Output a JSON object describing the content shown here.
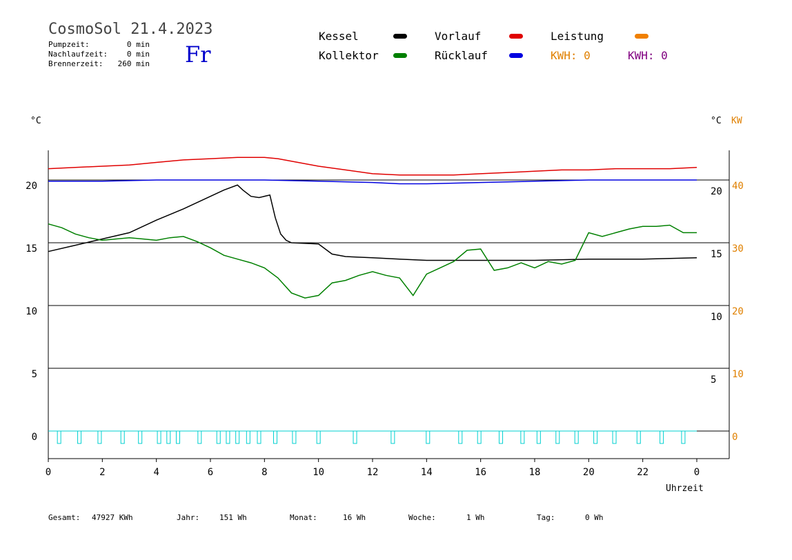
{
  "header": {
    "title": "CosmoSol 21.4.2023",
    "weekday": "Fr",
    "info": [
      {
        "label": "Pumpzeit:",
        "value": "0 min"
      },
      {
        "label": "Nachlaufzeit:",
        "value": "0 min"
      },
      {
        "label": "Brennerzeit:",
        "value": "260 min"
      }
    ]
  },
  "legend": {
    "kessel": {
      "label": "Kessel",
      "color": "#000000"
    },
    "vorlauf": {
      "label": "Vorlauf",
      "color": "#e00000"
    },
    "leistung": {
      "label": "Leistung",
      "color": "#f08000"
    },
    "kollektor": {
      "label": "Kollektor",
      "color": "#008000"
    },
    "ruecklauf": {
      "label": "Rücklauf",
      "color": "#0000e0"
    },
    "kwh1": {
      "label": "KWH: 0",
      "color": "#e08000"
    },
    "kwh2": {
      "label": "KWH: 0",
      "color": "#800080"
    }
  },
  "axes": {
    "left_unit": "°C",
    "right_unit_c": "°C",
    "right_unit_kw": "KW",
    "xlabel": "Uhrzeit"
  },
  "footer": [
    {
      "label": "Gesamt:",
      "value": "47927 KWh"
    },
    {
      "label": "Jahr:",
      "value": "151 Wh"
    },
    {
      "label": "Monat:",
      "value": "16 Wh"
    },
    {
      "label": "Woche:",
      "value": "1 Wh"
    },
    {
      "label": "Tag:",
      "value": "0 Wh"
    }
  ],
  "chart_data": {
    "type": "line",
    "title": "CosmoSol 21.4.2023",
    "xlabel": "Uhrzeit",
    "ylabel": "°C",
    "x_ticks": [
      "0",
      "2",
      "4",
      "6",
      "8",
      "10",
      "12",
      "14",
      "16",
      "18",
      "20",
      "22",
      "0"
    ],
    "xlim": [
      0,
      24
    ],
    "ylim": [
      -2,
      23
    ],
    "y_ticks_left": [
      "0",
      "5",
      "10",
      "15",
      "20"
    ],
    "y_ticks_right_c": [
      "5",
      "10",
      "15",
      "20"
    ],
    "y_ticks_right_kw": [
      "0",
      "10",
      "20",
      "30",
      "40"
    ],
    "gridlines_y": [
      0,
      5,
      10,
      15,
      20
    ],
    "series": [
      {
        "name": "Vorlauf",
        "color": "#e00000",
        "x": [
          0,
          1,
          2,
          3,
          4,
          5,
          6,
          7,
          8,
          8.5,
          9,
          10,
          11,
          12,
          13,
          14,
          15,
          16,
          17,
          18,
          19,
          20,
          21,
          22,
          23,
          24
        ],
        "y": [
          20.9,
          21.0,
          21.1,
          21.2,
          21.4,
          21.6,
          21.7,
          21.8,
          21.8,
          21.7,
          21.5,
          21.1,
          20.8,
          20.5,
          20.4,
          20.4,
          20.4,
          20.5,
          20.6,
          20.7,
          20.8,
          20.8,
          20.9,
          20.9,
          20.9,
          21.0
        ]
      },
      {
        "name": "Rücklauf",
        "color": "#0000e0",
        "x": [
          0,
          2,
          4,
          6,
          8,
          10,
          12,
          13,
          14,
          16,
          18,
          20,
          22,
          24
        ],
        "y": [
          19.9,
          19.9,
          20.0,
          20.0,
          20.0,
          19.9,
          19.8,
          19.7,
          19.7,
          19.8,
          19.9,
          20.0,
          20.0,
          20.0
        ]
      },
      {
        "name": "Kessel",
        "color": "#000000",
        "x": [
          0,
          1,
          2,
          3,
          4,
          5,
          6,
          6.5,
          7,
          7.2,
          7.5,
          7.8,
          8.2,
          8.4,
          8.6,
          8.8,
          9,
          10,
          10.5,
          11,
          12,
          13,
          14,
          16,
          18,
          20,
          22,
          24
        ],
        "y": [
          14.3,
          14.8,
          15.3,
          15.8,
          16.8,
          17.7,
          18.7,
          19.2,
          19.6,
          19.2,
          18.7,
          18.6,
          18.8,
          17.0,
          15.7,
          15.2,
          15.0,
          14.9,
          14.1,
          13.9,
          13.8,
          13.7,
          13.6,
          13.6,
          13.6,
          13.7,
          13.7,
          13.8
        ]
      },
      {
        "name": "Kollektor",
        "color": "#008000",
        "x": [
          0,
          0.5,
          1,
          1.5,
          2,
          3,
          3.5,
          4,
          4.5,
          5,
          5.5,
          6,
          6.5,
          7,
          7.5,
          8,
          8.5,
          9,
          9.5,
          10,
          10.5,
          11,
          11.5,
          12,
          12.5,
          13,
          13.5,
          14,
          14.5,
          15,
          15.5,
          16,
          16.5,
          17,
          17.5,
          18,
          18.5,
          19,
          19.5,
          20,
          20.5,
          21,
          21.5,
          22,
          22.5,
          23,
          23.5,
          24
        ],
        "y": [
          16.5,
          16.2,
          15.7,
          15.4,
          15.2,
          15.4,
          15.3,
          15.2,
          15.4,
          15.5,
          15.1,
          14.6,
          14.0,
          13.7,
          13.4,
          13.0,
          12.2,
          11.0,
          10.6,
          10.8,
          11.8,
          12.0,
          12.4,
          12.7,
          12.4,
          12.2,
          10.8,
          12.5,
          13.0,
          13.5,
          14.4,
          14.5,
          12.8,
          13.0,
          13.4,
          13.0,
          13.5,
          13.3,
          13.6,
          15.8,
          15.5,
          15.8,
          16.1,
          16.3,
          16.3,
          16.4,
          15.8,
          15.8
        ]
      }
    ],
    "burner_pulses_x": [
      0.4,
      1.15,
      1.9,
      2.75,
      3.4,
      4.1,
      4.45,
      4.8,
      5.6,
      6.3,
      6.65,
      7.0,
      7.4,
      7.8,
      8.4,
      9.1,
      10.0,
      11.35,
      12.75,
      14.05,
      15.25,
      15.95,
      16.75,
      17.55,
      18.15,
      18.85,
      19.55,
      20.25,
      20.95,
      21.85,
      22.7,
      23.5
    ],
    "legend_position": "top"
  }
}
